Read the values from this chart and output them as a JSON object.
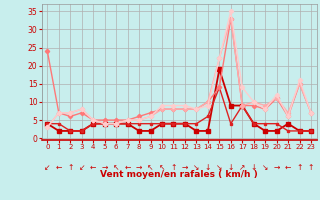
{
  "bg_color": "#c8eeed",
  "grid_color": "#b0b0b0",
  "xlabel": "Vent moyen/en rafales ( km/h )",
  "x_ticks": [
    0,
    1,
    2,
    3,
    4,
    5,
    6,
    7,
    8,
    9,
    10,
    11,
    12,
    13,
    14,
    15,
    16,
    17,
    18,
    19,
    20,
    21,
    22,
    23
  ],
  "y_ticks": [
    0,
    5,
    10,
    15,
    20,
    25,
    30,
    35
  ],
  "ylim": [
    -0.5,
    37
  ],
  "xlim": [
    -0.5,
    23.5
  ],
  "lines": [
    {
      "color": "#cc0000",
      "lw": 1.3,
      "marker": "s",
      "ms": 2.2,
      "y": [
        4,
        2,
        2,
        2,
        4,
        4,
        4,
        4,
        2,
        2,
        4,
        4,
        4,
        2,
        2,
        19,
        9,
        9,
        4,
        2,
        2,
        4,
        2,
        2
      ]
    },
    {
      "color": "#dd2222",
      "lw": 1.0,
      "marker": "s",
      "ms": 2.0,
      "y": [
        4,
        4,
        2,
        2,
        4,
        4,
        4,
        4,
        4,
        4,
        4,
        4,
        4,
        4,
        6,
        14,
        4,
        9,
        4,
        4,
        4,
        2,
        2,
        2
      ]
    },
    {
      "color": "#ff7777",
      "lw": 1.0,
      "marker": "D",
      "ms": 2.2,
      "y": [
        24,
        7,
        6,
        7,
        5,
        5,
        5,
        5,
        6,
        7,
        8,
        8,
        8,
        8,
        10,
        14,
        33,
        9,
        9,
        8,
        11,
        6,
        15,
        7
      ]
    },
    {
      "color": "#ffaaaa",
      "lw": 1.0,
      "marker": "D",
      "ms": 2.2,
      "y": [
        3,
        7,
        7,
        8,
        5,
        4,
        4,
        5,
        5,
        6,
        8,
        8,
        8,
        8,
        10,
        22,
        33,
        9,
        10,
        9,
        11,
        7,
        15,
        7
      ]
    },
    {
      "color": "#ffcccc",
      "lw": 1.0,
      "marker": "D",
      "ms": 2.2,
      "y": [
        3,
        7,
        7,
        8,
        5,
        4,
        4,
        5,
        5,
        6,
        9,
        9,
        9,
        8,
        9,
        22,
        35,
        14,
        10,
        8,
        12,
        6,
        16,
        7
      ]
    }
  ],
  "wind_dirs": [
    "↙",
    "←",
    "↑",
    "↙",
    "←",
    "→",
    "↖",
    "←",
    "→",
    "↖",
    "↖",
    "↑",
    "→",
    "↘",
    "↓",
    "↘",
    "↓",
    "↗",
    "↓",
    "↘",
    "→",
    "←",
    "↑",
    "↑"
  ]
}
